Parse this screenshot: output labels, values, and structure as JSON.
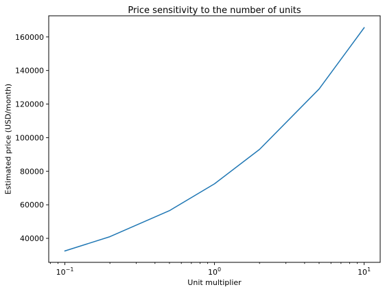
{
  "chart_data": {
    "type": "line",
    "title": "Price sensitivity to the number of units",
    "xlabel": "Unit multiplier",
    "ylabel": "Estimated price (USD/month)",
    "xscale": "log",
    "xlim": [
      0.078,
      12.8
    ],
    "ylim": [
      25700,
      172600
    ],
    "grid": false,
    "x_ticks": [
      {
        "value": 0.1,
        "base": "10",
        "exp": "−1"
      },
      {
        "value": 1,
        "base": "10",
        "exp": "0"
      },
      {
        "value": 10,
        "base": "10",
        "exp": "1"
      }
    ],
    "y_ticks": [
      40000,
      60000,
      80000,
      100000,
      120000,
      140000,
      160000
    ],
    "series": [
      {
        "color": "#1f77b4",
        "x": [
          0.1,
          0.2,
          0.5,
          1,
          2,
          5,
          10
        ],
        "y": [
          32500,
          41000,
          56500,
          72500,
          93000,
          129000,
          165500
        ]
      }
    ]
  }
}
